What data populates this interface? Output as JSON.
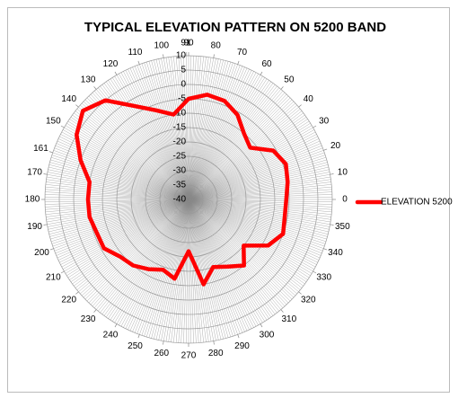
{
  "chart_data": {
    "type": "polar",
    "title": "TYPICAL ELEVATION PATTERN ON 5200 BAND",
    "x": [
      0,
      10,
      20,
      30,
      40,
      50,
      60,
      70,
      80,
      90,
      100,
      110,
      120,
      130,
      140,
      150,
      160,
      170,
      180,
      190,
      200,
      210,
      220,
      230,
      240,
      250,
      260,
      270,
      280,
      290,
      300,
      310,
      320,
      330,
      340,
      350
    ],
    "series": [
      {
        "name": "ELEVATION 5200",
        "color": "#ff0000",
        "values": [
          -6,
          -5,
          -4,
          -6,
          -12,
          -10,
          -6,
          -3.5,
          -3,
          -5,
          -10,
          -7,
          -2.5,
          5,
          8,
          5,
          0,
          -5,
          -5,
          -5,
          -6,
          -6,
          -9,
          -10,
          -12,
          -14,
          -12,
          -22,
          -10,
          -15,
          -13,
          -10,
          -15,
          -8,
          -5,
          -6
        ]
      }
    ],
    "xticks": [
      0,
      10,
      20,
      30,
      40,
      50,
      60,
      70,
      80,
      90,
      91,
      100,
      110,
      120,
      130,
      140,
      150,
      161,
      170,
      180,
      190,
      200,
      210,
      220,
      230,
      240,
      250,
      260,
      270,
      280,
      290,
      300,
      310,
      320,
      330,
      340,
      350
    ],
    "ylim": [
      -40,
      10
    ],
    "yticks": [
      10,
      5,
      0,
      -5,
      -10,
      -15,
      -20,
      -25,
      -30,
      -35,
      -40
    ],
    "grid": true,
    "legend": "right"
  }
}
